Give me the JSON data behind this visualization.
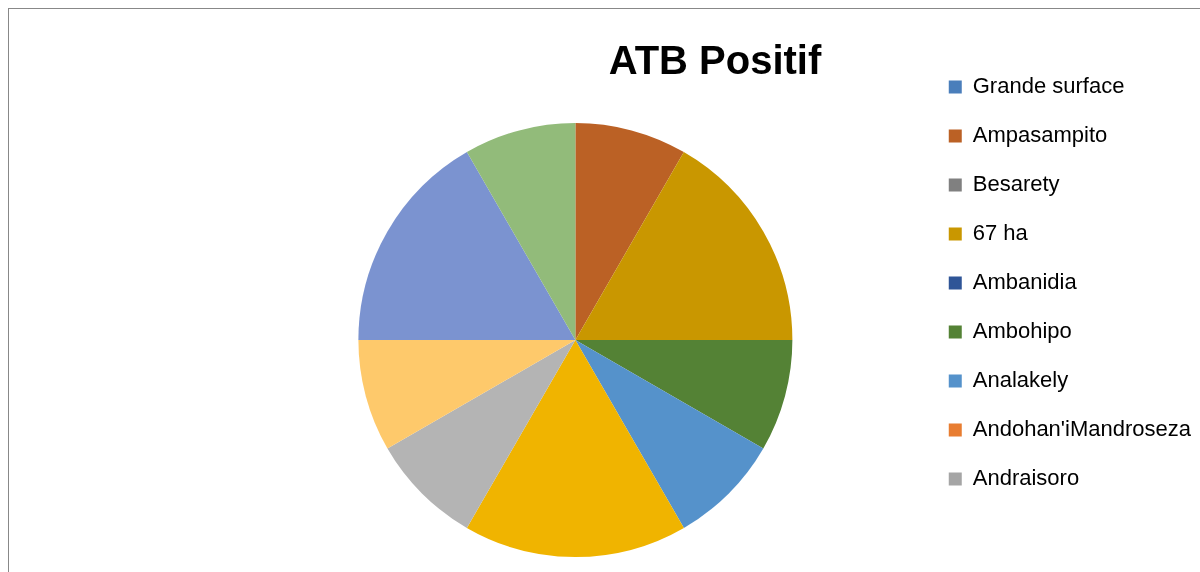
{
  "chart_data": {
    "type": "pie",
    "title": "ATB Positif",
    "legend": "right",
    "categories": [
      "Grande surface",
      "Ampasampito",
      "Besarety",
      "67 ha",
      "Ambanidia",
      "Ambohipo",
      "Analakely",
      "Andohan'iMandroseza",
      "Andraisoro",
      null,
      null,
      null,
      null,
      null
    ],
    "values": [
      0,
      8.33,
      0,
      16.67,
      0,
      8.33,
      8.33,
      0,
      0,
      16.67,
      8.33,
      8.33,
      16.67,
      8.33
    ],
    "colors": [
      "#4a7ebb",
      "#bb6125",
      "#808080",
      "#c99700",
      "#2f5597",
      "#548235",
      "#5592cb",
      "#e87d31",
      "#a5a5a5",
      "#f0b400",
      "#b4b4b4",
      "#fec96b",
      "#7b93d0",
      "#92bb7a"
    ]
  }
}
